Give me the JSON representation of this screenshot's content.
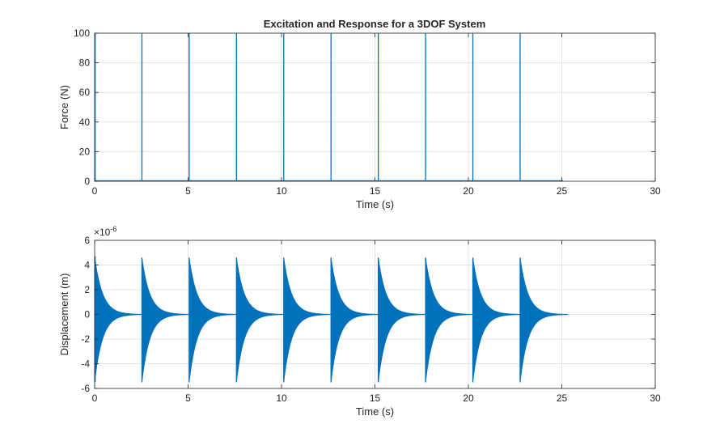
{
  "figure": {
    "title": "Excitation and Response for a 3DOF System"
  },
  "colors": {
    "series": "#0072BD",
    "grid": "#e3e3e3",
    "axis": "#262626"
  },
  "chart_data": [
    {
      "type": "line",
      "title": "Excitation and Response for a 3DOF System",
      "xlabel": "Time (s)",
      "ylabel": "Force (N)",
      "xlim": [
        0,
        30
      ],
      "ylim": [
        0,
        100
      ],
      "xticks": [
        0,
        5,
        10,
        15,
        20,
        25,
        30
      ],
      "yticks": [
        0,
        20,
        40,
        60,
        80,
        100
      ],
      "grid": true,
      "series": [
        {
          "impulse_times": [
            0,
            2.53,
            5.06,
            7.59,
            10.12,
            12.65,
            15.18,
            17.71,
            20.24,
            22.77
          ],
          "impulse_amplitude": 100,
          "baseline": 0
        }
      ]
    },
    {
      "type": "line",
      "title": "",
      "xlabel": "Time (s)",
      "ylabel": "Displacement (m)",
      "y_exponent_label": "×10-6",
      "y_exponent_base": "×10",
      "y_exponent_power": "-6",
      "xlim": [
        0,
        30
      ],
      "ylim": [
        -6,
        6
      ],
      "xticks": [
        0,
        5,
        10,
        15,
        20,
        25,
        30
      ],
      "yticks": [
        -6,
        -4,
        -2,
        0,
        2,
        4,
        6
      ],
      "grid": true,
      "series": [
        {
          "response_start_times": [
            0,
            2.53,
            5.06,
            7.59,
            10.12,
            12.65,
            15.18,
            17.71,
            20.24,
            22.77
          ],
          "positive_peak": 4.6,
          "negative_peak": -5.5,
          "first_positive_peak": 4.7,
          "decay_end_time": 25.3
        }
      ]
    }
  ]
}
